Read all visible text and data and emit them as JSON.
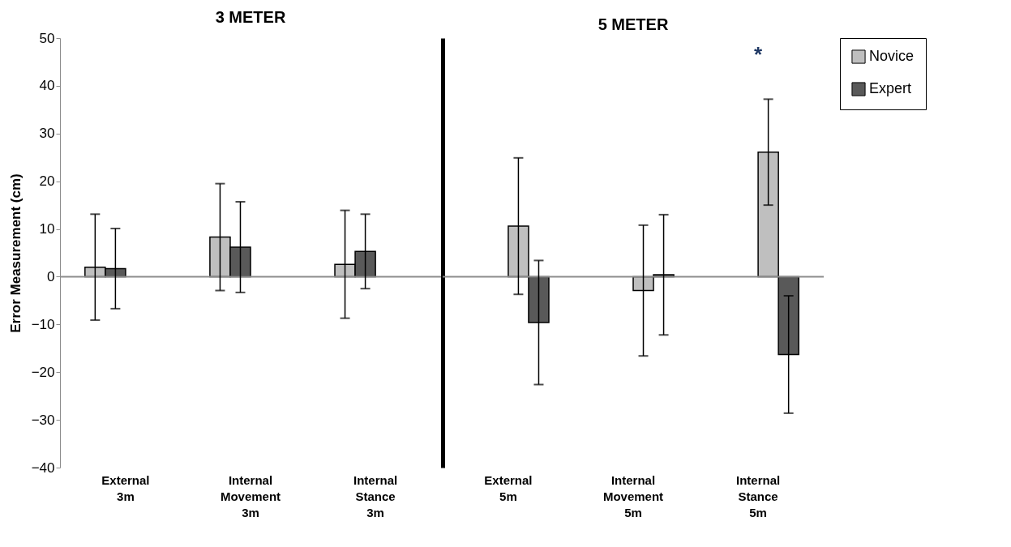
{
  "chart_data": [
    {
      "type": "bar",
      "title": "3 METER",
      "ylabel": "Error Measurement (cm)",
      "categories": [
        "External 3m",
        "Internal Movement 3m",
        "Internal Stance 3m"
      ],
      "series": [
        {
          "color": "#bfbfbf",
          "values": [
            2.0,
            8.3,
            2.6
          ],
          "errors": [
            11.1,
            11.2,
            11.3
          ]
        },
        {
          "color": "#595959",
          "values": [
            1.7,
            6.2,
            5.3
          ],
          "errors": [
            8.4,
            9.5,
            7.8
          ]
        }
      ],
      "ylim": [
        -40,
        50
      ],
      "yticks": [
        -40,
        -30,
        -20,
        -10,
        0,
        10,
        20,
        30,
        40,
        50
      ],
      "ref_lines": [
        {
          "axis": "y",
          "value": 0,
          "color": "#8c8c8c"
        }
      ],
      "legend": false
    },
    {
      "type": "bar",
      "title": "5 METER",
      "categories": [
        "External 5m",
        "Internal Movement 5m",
        "Internal Stance 5m"
      ],
      "series": [
        {
          "name": "Novice",
          "color": "#bfbfbf",
          "values": [
            10.6,
            -2.9,
            26.1
          ],
          "errors": [
            14.3,
            13.7,
            11.1
          ]
        },
        {
          "name": "Expert",
          "color": "#595959",
          "values": [
            -9.6,
            0.4,
            -16.3
          ],
          "errors": [
            13.0,
            12.6,
            12.3
          ]
        }
      ],
      "ylim": [
        -40,
        50
      ],
      "yticks": [
        -40,
        -30,
        -20,
        -10,
        0,
        10,
        20,
        30,
        40,
        50
      ],
      "tick_labels": "x",
      "ref_lines": [
        {
          "axis": "y",
          "value": 0,
          "color": "#8c8c8c"
        }
      ],
      "annotations": [
        "*"
      ],
      "legend": "top right"
    }
  ]
}
